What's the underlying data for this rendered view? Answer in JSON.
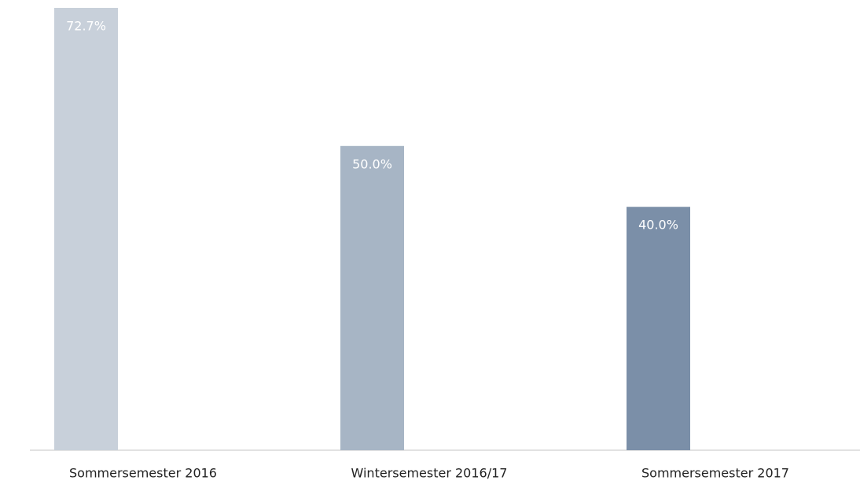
{
  "chart_data": {
    "type": "bar",
    "categories": [
      "Sommersemester 2016",
      "Wintersemester 2016/17",
      "Sommersemester 2017"
    ],
    "values": [
      72.7,
      50.0,
      40.0
    ],
    "value_labels": [
      "72.7%",
      "50.0%",
      "40.0%"
    ],
    "colors": [
      "#c8d0da",
      "#a7b5c5",
      "#7b8fa8"
    ]
  }
}
